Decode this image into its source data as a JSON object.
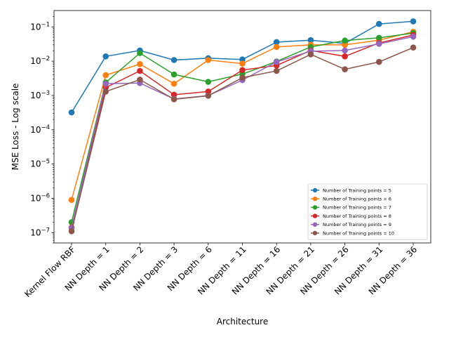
{
  "chart_data": {
    "type": "line",
    "xlabel": "Architecture",
    "ylabel": "MSE Loss - Log scale",
    "yscale": "log",
    "ylim": [
      5e-08,
      0.3
    ],
    "ytick_values": [
      1e-07,
      1e-06,
      1e-05,
      0.0001,
      0.001,
      0.01,
      0.1
    ],
    "ytick_exponents": [
      "-7",
      "-6",
      "-5",
      "-4",
      "-3",
      "-2",
      "-1"
    ],
    "ytick_base": "10",
    "grid": false,
    "legend_position": "lower-right",
    "categories": [
      "Kernel Flow RBF",
      "NN Depth = 1",
      "NN Depth = 2",
      "NN Depth = 3",
      "NN Depth = 6",
      "NN Depth = 11",
      "NN Depth = 16",
      "NN Depth = 21",
      "NN Depth = 26",
      "NN Depth = 31",
      "NN Depth = 36"
    ],
    "series": [
      {
        "name": "Number of Training points = 5",
        "color": "#1f77b4",
        "values": [
          0.00032,
          0.0138,
          0.0205,
          0.0108,
          0.0122,
          0.0112,
          0.036,
          0.041,
          0.033,
          0.122,
          0.145
        ]
      },
      {
        "name": "Number of Training points = 6",
        "color": "#ff7f0e",
        "values": [
          9e-07,
          0.0039,
          0.0082,
          0.0022,
          0.0108,
          0.0085,
          0.026,
          0.03,
          0.03,
          0.041,
          0.072
        ]
      },
      {
        "name": "Number of Training points = 7",
        "color": "#2ca02c",
        "values": [
          2e-07,
          0.0024,
          0.0172,
          0.0041,
          0.0025,
          0.0042,
          0.0098,
          0.026,
          0.04,
          0.048,
          0.066
        ]
      },
      {
        "name": "Number of Training points = 8",
        "color": "#d62728",
        "values": [
          1.4e-07,
          0.0017,
          0.0052,
          0.00105,
          0.0013,
          0.0055,
          0.0075,
          0.0205,
          0.0138,
          0.034,
          0.058
        ]
      },
      {
        "name": "Number of Training points = 9",
        "color": "#9467bd",
        "values": [
          1.35e-07,
          0.0022,
          0.0023,
          0.00079,
          0.00099,
          0.0028,
          0.0095,
          0.0195,
          0.0205,
          0.032,
          0.052
        ]
      },
      {
        "name": "Number of Training points = 10",
        "color": "#8c564b",
        "values": [
          1.1e-07,
          0.0013,
          0.0029,
          0.00077,
          0.00098,
          0.0033,
          0.0052,
          0.0158,
          0.0058,
          0.0095,
          0.025
        ]
      }
    ]
  }
}
